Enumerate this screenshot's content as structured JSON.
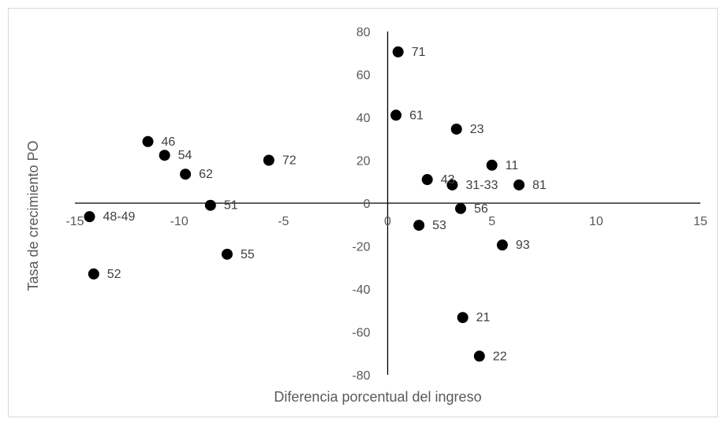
{
  "chart_data": {
    "type": "scatter",
    "title": "",
    "xlabel": "Diferencia porcentual del ingreso",
    "ylabel": "Tasa de crecimiento PO",
    "xlim": [
      -15,
      15
    ],
    "ylim": [
      -80,
      80
    ],
    "xticks": [
      -15,
      -10,
      -5,
      0,
      5,
      10,
      15
    ],
    "yticks": [
      80,
      60,
      40,
      20,
      0,
      -20,
      -40,
      -60,
      -80
    ],
    "grid": false,
    "marker_color": "#000000",
    "axis_color": "#000000",
    "points": [
      {
        "label": "71",
        "x": 0.5,
        "y": 70.5
      },
      {
        "label": "61",
        "x": 0.4,
        "y": 41
      },
      {
        "label": "23",
        "x": 3.3,
        "y": 34.5
      },
      {
        "label": "46",
        "x": -11.5,
        "y": 28.7
      },
      {
        "label": "54",
        "x": -10.7,
        "y": 22.3
      },
      {
        "label": "72",
        "x": -5.7,
        "y": 20
      },
      {
        "label": "11",
        "x": 5,
        "y": 17.7
      },
      {
        "label": "62",
        "x": -9.7,
        "y": 13.5
      },
      {
        "label": "43",
        "x": 1.9,
        "y": 11
      },
      {
        "label": "31-33",
        "x": 3.1,
        "y": 8.5
      },
      {
        "label": "81",
        "x": 6.3,
        "y": 8.5
      },
      {
        "label": "51",
        "x": -8.5,
        "y": -1
      },
      {
        "label": "56",
        "x": 3.5,
        "y": -2.5
      },
      {
        "label": "48-49",
        "x": -14.3,
        "y": -6.3
      },
      {
        "label": "53",
        "x": 1.5,
        "y": -10.3
      },
      {
        "label": "93",
        "x": 5.5,
        "y": -19.5
      },
      {
        "label": "55",
        "x": -7.7,
        "y": -23.8
      },
      {
        "label": "52",
        "x": -14.1,
        "y": -33
      },
      {
        "label": "21",
        "x": 3.6,
        "y": -53.3
      },
      {
        "label": "22",
        "x": 4.4,
        "y": -71.3
      }
    ]
  }
}
